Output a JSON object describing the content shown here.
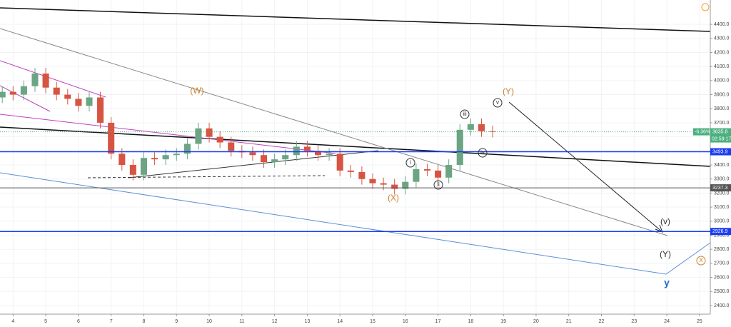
{
  "chart_data": {
    "type": "candlestick",
    "x": [
      3.67,
      4,
      4.33,
      4.67,
      5,
      5.33,
      5.67,
      6,
      6.33,
      6.67,
      7,
      7.33,
      7.67,
      8,
      8.33,
      8.67,
      9,
      9.33,
      9.67,
      10,
      10.33,
      10.67,
      11,
      11.33,
      11.67,
      12,
      12.33,
      12.67,
      13,
      13.33,
      13.67,
      14,
      14.33,
      14.67,
      15,
      15.33,
      15.67,
      16,
      16.33,
      16.67,
      17,
      17.33,
      17.67,
      18,
      18.33,
      18.67
    ],
    "open": [
      3880,
      3920,
      3900,
      3960,
      4050,
      3950,
      3900,
      3870,
      3820,
      3880,
      3700,
      3480,
      3400,
      3330,
      3450,
      3440,
      3470,
      3480,
      3550,
      3660,
      3600,
      3560,
      3500,
      3490,
      3470,
      3420,
      3440,
      3470,
      3530,
      3500,
      3470,
      3480,
      3360,
      3350,
      3300,
      3270,
      3260,
      3230,
      3280,
      3370,
      3360,
      3310,
      3400,
      3650,
      3690,
      3640
    ],
    "high": [
      3960,
      3960,
      4000,
      4090,
      4090,
      3990,
      3940,
      3910,
      3920,
      3920,
      3740,
      3520,
      3440,
      3490,
      3490,
      3510,
      3520,
      3590,
      3700,
      3700,
      3640,
      3600,
      3540,
      3530,
      3510,
      3480,
      3510,
      3570,
      3570,
      3540,
      3520,
      3520,
      3400,
      3390,
      3340,
      3310,
      3300,
      3320,
      3410,
      3410,
      3400,
      3440,
      3690,
      3730,
      3730,
      3680
    ],
    "low": [
      3840,
      3860,
      3860,
      3920,
      3910,
      3860,
      3830,
      3780,
      3780,
      3660,
      3440,
      3360,
      3290,
      3290,
      3400,
      3400,
      3430,
      3440,
      3510,
      3560,
      3520,
      3460,
      3450,
      3430,
      3380,
      3380,
      3400,
      3430,
      3460,
      3430,
      3430,
      3320,
      3310,
      3260,
      3230,
      3220,
      3190,
      3190,
      3240,
      3320,
      3270,
      3270,
      3360,
      3610,
      3600,
      3596
    ],
    "close": [
      3920,
      3900,
      3960,
      4050,
      3950,
      3900,
      3870,
      3820,
      3880,
      3700,
      3480,
      3400,
      3330,
      3450,
      3440,
      3470,
      3480,
      3550,
      3660,
      3600,
      3560,
      3500,
      3490,
      3470,
      3420,
      3440,
      3470,
      3530,
      3500,
      3470,
      3480,
      3360,
      3350,
      3300,
      3270,
      3260,
      3230,
      3280,
      3370,
      3360,
      3310,
      3400,
      3650,
      3690,
      3640,
      3636
    ],
    "up_color": "#6ba583",
    "down_color": "#d75442",
    "xlim": [
      3.6,
      25.33
    ],
    "xticks": [
      4,
      5,
      6,
      7,
      8,
      9,
      10,
      11,
      12,
      13,
      14,
      15,
      16,
      17,
      18,
      19,
      20,
      21,
      22,
      23,
      24,
      25
    ],
    "ylim": [
      2339,
      4573
    ],
    "yticks": [
      {
        "value": 2400,
        "label": "2400.0"
      },
      {
        "value": 2500,
        "label": "2500.0"
      },
      {
        "value": 2600,
        "label": "2600.0"
      },
      {
        "value": 2700,
        "label": "2700.0"
      },
      {
        "value": 2800,
        "label": "2800.0"
      },
      {
        "value": 2900,
        "label": "2900.0"
      },
      {
        "value": 3000,
        "label": "3000.0"
      },
      {
        "value": 3100,
        "label": "3100.0"
      },
      {
        "value": 3200,
        "label": "3200.0"
      },
      {
        "value": 3300,
        "label": "3300.0"
      },
      {
        "value": 3400,
        "label": "3400.0"
      },
      {
        "value": 3500,
        "label": "3500.0"
      },
      {
        "value": 3600,
        "label": "3600.0"
      },
      {
        "value": 3700,
        "label": "3700.0"
      },
      {
        "value": 3800,
        "label": "3800.0"
      },
      {
        "value": 3900,
        "label": "3900.0"
      },
      {
        "value": 4000,
        "label": "4000.0"
      },
      {
        "value": 4100,
        "label": "4100.0"
      },
      {
        "value": 4200,
        "label": "4200.0"
      },
      {
        "value": 4300,
        "label": "4300.0"
      },
      {
        "value": 4400,
        "label": "4400.0"
      }
    ],
    "grid": true,
    "levels": [
      {
        "value": 3493.9,
        "color": "#1a3cf0"
      },
      {
        "value": 3237.3,
        "color": "#555555"
      },
      {
        "value": 2926.9,
        "color": "#1a3cf0"
      }
    ],
    "last_price": {
      "value": 3635.8,
      "change": "-6.36%",
      "timer": "02:59:17",
      "color": "#4caf7f"
    },
    "annotations": [
      {
        "text": "(W)",
        "color": "#c8832a"
      },
      {
        "text": "(X)",
        "color": "#c8832a"
      },
      {
        "text": "(Y)",
        "color": "#c8832a"
      },
      {
        "text": "i",
        "color": "#333333"
      },
      {
        "text": "ii",
        "color": "#333333"
      },
      {
        "text": "iii",
        "color": "#333333"
      },
      {
        "text": "iv",
        "color": "#333333"
      },
      {
        "text": "v",
        "color": "#333333"
      },
      {
        "text": "(v)",
        "color": "#333333"
      },
      {
        "text": "(Y)",
        "color": "#333333"
      },
      {
        "text": "X",
        "color": "#c8832a"
      },
      {
        "text": "y",
        "color": "#1f6fd1"
      }
    ]
  }
}
